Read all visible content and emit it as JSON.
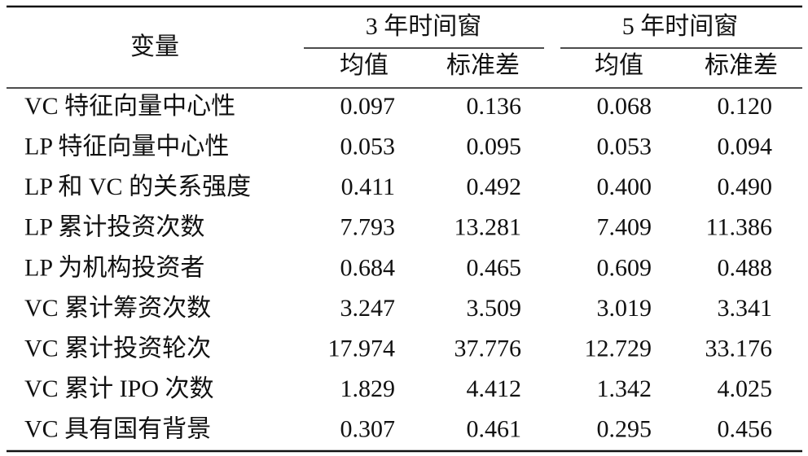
{
  "header": {
    "variable": "变量",
    "groups": [
      {
        "title": "3 年时间窗",
        "columns": [
          "均值",
          "标准差"
        ]
      },
      {
        "title": "5 年时间窗",
        "columns": [
          "均值",
          "标准差"
        ]
      }
    ]
  },
  "rows": [
    [
      "VC 特征向量中心性",
      "0.097",
      "0.136",
      "0.068",
      "0.120"
    ],
    [
      "LP 特征向量中心性",
      "0.053",
      "0.095",
      "0.053",
      "0.094"
    ],
    [
      "LP 和 VC 的关系强度",
      "0.411",
      "0.492",
      "0.400",
      "0.490"
    ],
    [
      "LP 累计投资次数",
      "7.793",
      "13.281",
      "7.409",
      "11.386"
    ],
    [
      "LP 为机构投资者",
      "0.684",
      "0.465",
      "0.609",
      "0.488"
    ],
    [
      "VC 累计筹资次数",
      "3.247",
      "3.509",
      "3.019",
      "3.341"
    ],
    [
      "VC 累计投资轮次",
      "17.974",
      "37.776",
      "12.729",
      "33.176"
    ],
    [
      "VC 累计 IPO 次数",
      "1.829",
      "4.412",
      "1.342",
      "4.025"
    ],
    [
      "VC 具有国有背景",
      "0.307",
      "0.461",
      "0.295",
      "0.456"
    ]
  ]
}
